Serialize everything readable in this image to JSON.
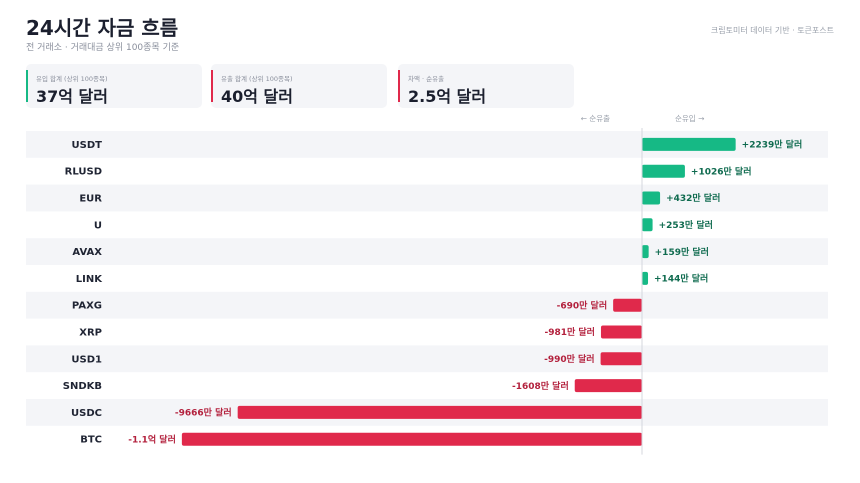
{
  "header": {
    "title": "24시간 자금 흐름",
    "subtitle": "전 거래소 · 거래대금 상위 100종목 기준",
    "source": "크립토미터 데이터 기반 · 토큰포스트"
  },
  "stats": [
    {
      "label": "유입 합계 (상위 100종목)",
      "value": "37억 달러",
      "color": "#16b985"
    },
    {
      "label": "유출 합계 (상위 100종목)",
      "value": "40억 달러",
      "color": "#e0294b"
    },
    {
      "label": "차액 · 순유출",
      "value": "2.5억 달러",
      "color": "#e0294b"
    }
  ],
  "colors": {
    "inflow": "#16b985",
    "outflow": "#e0294b",
    "inflow_text": "#0f6b4f",
    "outflow_text": "#b3213d"
  },
  "chart_data": {
    "type": "bar",
    "orientation": "horizontal",
    "unit": "만 달러",
    "axis_hints": {
      "left": "← 순유출",
      "right": "순유입 →"
    },
    "categories": [
      "USDT",
      "RLUSD",
      "EUR",
      "U",
      "AVAX",
      "LINK",
      "PAXG",
      "XRP",
      "USD1",
      "SNDKB",
      "USDC",
      "BTC"
    ],
    "values": [
      2239,
      1026,
      432,
      253,
      159,
      144,
      -690,
      -981,
      -990,
      -1608,
      -9666,
      -11000
    ],
    "value_labels": [
      "+2239만 달러",
      "+1026만 달러",
      "+432만 달러",
      "+253만 달러",
      "+159만 달러",
      "+144만 달러",
      "-690만 달러",
      "-981만 달러",
      "-990만 달러",
      "-1608만 달러",
      "-9666만 달러",
      "-1.1억 달러"
    ]
  }
}
